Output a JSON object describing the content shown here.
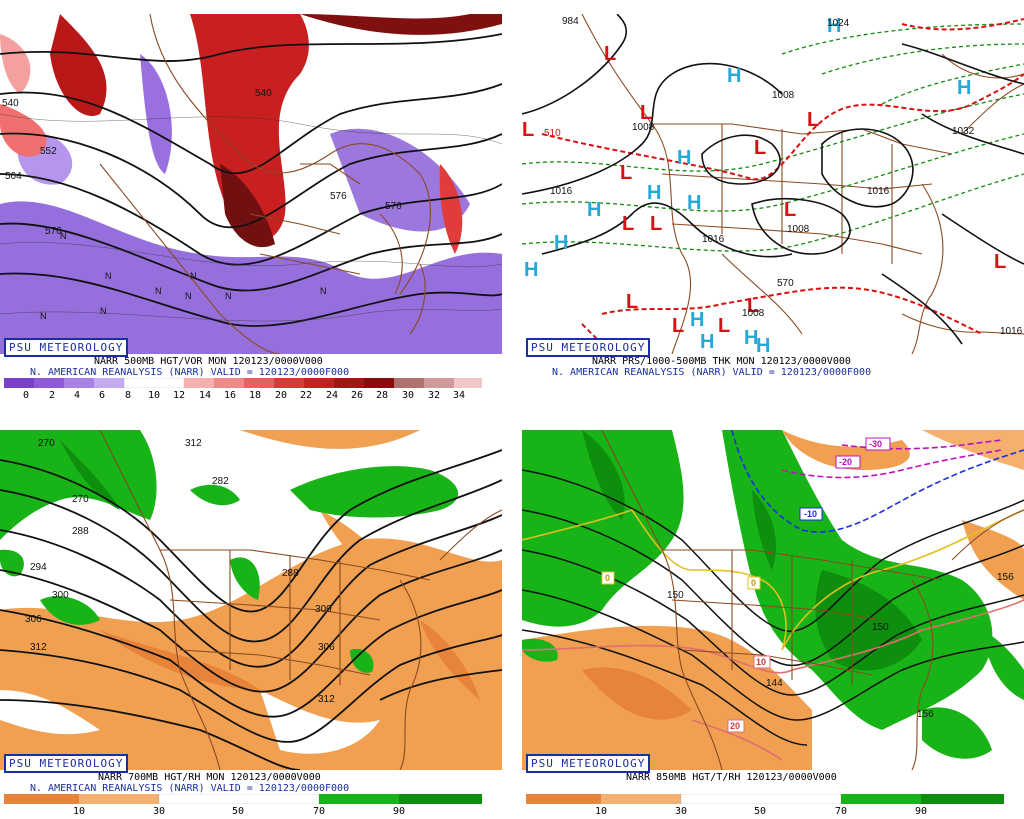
{
  "brand": "PSU METEOROLOGY",
  "panels": [
    {
      "caption1": "NARR 500MB HGT/VOR MON 120123/0000V000",
      "caption2": "N. AMERICAN REANALYSIS (NARR) VALID = 120123/0000F000",
      "colorbar_ticks": [
        "0",
        "2",
        "4",
        "6",
        "8",
        "10",
        "12",
        "14",
        "16",
        "18",
        "20",
        "22",
        "24",
        "26",
        "28",
        "30",
        "32",
        "34"
      ],
      "contour_labels": [
        "552",
        "564",
        "576",
        "576",
        "540",
        "540",
        "576"
      ]
    },
    {
      "caption1": "NARR PRS/1000-500MB THK MON 120123/0000V000",
      "caption2": "N. AMERICAN REANALYSIS (NARR) VALID = 120123/0000F000",
      "contour_labels": [
        "984",
        "1024",
        "1008",
        "1008",
        "1032",
        "1016",
        "1016",
        "1016",
        "1008",
        "1008",
        "570",
        "510",
        "1016"
      ]
    },
    {
      "caption1": "NARR 700MB HGT/RH MON 120123/0000V000",
      "caption2": "N. AMERICAN REANALYSIS (NARR) VALID = 120123/0000F000",
      "colorbar_ticks": [
        "10",
        "30",
        "50",
        "70",
        "90"
      ],
      "contour_labels": [
        "270",
        "282",
        "288",
        "294",
        "300",
        "306",
        "312",
        "312",
        "288",
        "300",
        "306",
        "312",
        "270"
      ]
    },
    {
      "caption1": "NARR 850MB HGT/T/RH 120123/0000V000",
      "caption2": "",
      "colorbar_ticks": [
        "10",
        "30",
        "50",
        "70",
        "90"
      ],
      "contour_labels": [
        "150",
        "150",
        "144",
        "156",
        "156",
        "-30",
        "-20",
        "-10",
        "0",
        "0",
        "10",
        "20"
      ]
    }
  ],
  "colors": {
    "brand_blue": "#1a2fa0",
    "vorticity_purple": "#8a5fd8",
    "vorticity_red": "#b81818",
    "high_cyan": "#27a8d8",
    "low_red": "#d81010",
    "rh_green": "#17b317",
    "rh_orange": "#f0a050"
  },
  "pressure_centers": {
    "highs": [
      "H",
      "H",
      "H",
      "H",
      "H",
      "H",
      "H",
      "H",
      "H",
      "H",
      "H",
      "H",
      "H"
    ],
    "lows": [
      "L",
      "L",
      "L",
      "L",
      "L",
      "L",
      "L",
      "L",
      "L",
      "L",
      "L",
      "L",
      "L",
      "L"
    ]
  }
}
